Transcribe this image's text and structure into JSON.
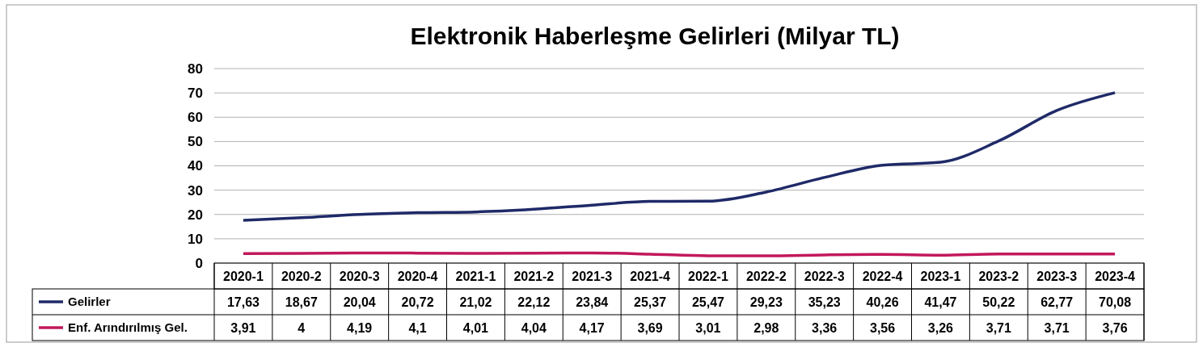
{
  "chart_data": {
    "type": "line",
    "title": "Elektronik Haberleşme Gelirleri (Milyar TL)",
    "categories": [
      "2020-1",
      "2020-2",
      "2020-3",
      "2020-4",
      "2021-1",
      "2021-2",
      "2021-3",
      "2021-4",
      "2022-1",
      "2022-2",
      "2022-3",
      "2022-4",
      "2023-1",
      "2023-2",
      "2023-3",
      "2023-4"
    ],
    "series": [
      {
        "name": "Gelirler",
        "color": "#1f2a68",
        "values": [
          17.63,
          18.67,
          20.04,
          20.72,
          21.02,
          22.12,
          23.84,
          25.37,
          25.47,
          29.23,
          35.23,
          40.26,
          41.47,
          50.22,
          62.77,
          70.08
        ],
        "value_labels": [
          "17,63",
          "18,67",
          "20,04",
          "20,72",
          "21,02",
          "22,12",
          "23,84",
          "25,37",
          "25,47",
          "29,23",
          "35,23",
          "40,26",
          "41,47",
          "50,22",
          "62,77",
          "70,08"
        ]
      },
      {
        "name": "Enf. Arındırılmış Gel.",
        "color": "#c2185b",
        "values": [
          3.91,
          4,
          4.19,
          4.1,
          4.01,
          4.04,
          4.17,
          3.69,
          3.01,
          2.98,
          3.36,
          3.56,
          3.26,
          3.71,
          3.71,
          3.76
        ],
        "value_labels": [
          "3,91",
          "4",
          "4,19",
          "4,1",
          "4,01",
          "4,04",
          "4,17",
          "3,69",
          "3,01",
          "2,98",
          "3,36",
          "3,56",
          "3,26",
          "3,71",
          "3,71",
          "3,76"
        ]
      }
    ],
    "ylim": [
      0,
      80
    ],
    "yticks": [
      0,
      10,
      20,
      30,
      40,
      50,
      60,
      70,
      80
    ],
    "grid": "y",
    "legend": "bottom",
    "marker": "none",
    "line_style": "solid"
  }
}
